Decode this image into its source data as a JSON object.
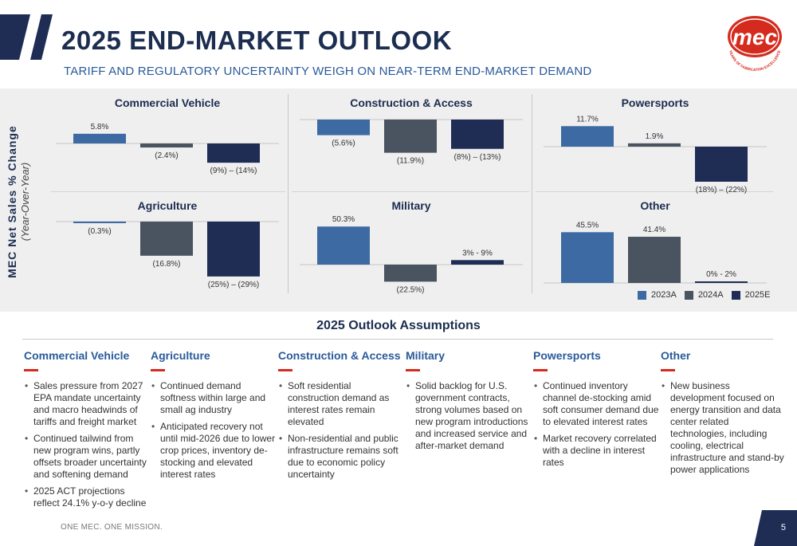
{
  "header": {
    "title": "2025 END-MARKET OUTLOOK",
    "subtitle": "TARIFF AND REGULATORY UNCERTAINTY WEIGH ON NEAR-TERM END-MARKET DEMAND",
    "logo_text": "mec",
    "logo_ring_text": "YEARS OF FABRICATION EXCELLENCE"
  },
  "y_axis_label": {
    "line1": "MEC Net Sales % Change",
    "line2": "(Year-Over-Year)"
  },
  "colors": {
    "2023A": "#3d6aa3",
    "2024A": "#4a5360",
    "2025E": "#1f2d55",
    "accent": "#d52b1e",
    "title": "#1c2d4f",
    "subtitle": "#2a5a9a"
  },
  "legend": [
    "2023A",
    "2024A",
    "2025E"
  ],
  "chart_data": [
    {
      "type": "bar",
      "title": "Commercial Vehicle",
      "categories": [
        "2023A",
        "2024A",
        "2025E"
      ],
      "values": [
        5.8,
        -2.4,
        -11.5
      ],
      "labels": [
        "5.8%",
        "(2.4%)",
        "(9%) – (14%)"
      ]
    },
    {
      "type": "bar",
      "title": "Construction & Access",
      "categories": [
        "2023A",
        "2024A",
        "2025E"
      ],
      "values": [
        -5.6,
        -11.9,
        -10.5
      ],
      "labels": [
        "(5.6%)",
        "(11.9%)",
        "(8%) – (13%)"
      ]
    },
    {
      "type": "bar",
      "title": "Powersports",
      "categories": [
        "2023A",
        "2024A",
        "2025E"
      ],
      "values": [
        11.7,
        1.9,
        -20
      ],
      "labels": [
        "11.7%",
        "1.9%",
        "(18%) – (22%)"
      ]
    },
    {
      "type": "bar",
      "title": "Agriculture",
      "categories": [
        "2023A",
        "2024A",
        "2025E"
      ],
      "values": [
        -0.3,
        -16.8,
        -27
      ],
      "labels": [
        "(0.3%)",
        "(16.8%)",
        "(25%) – (29%)"
      ]
    },
    {
      "type": "bar",
      "title": "Military",
      "categories": [
        "2023A",
        "2024A",
        "2025E"
      ],
      "values": [
        50.3,
        -22.5,
        6
      ],
      "labels": [
        "50.3%",
        "(22.5%)",
        "3% - 9%"
      ]
    },
    {
      "type": "bar",
      "title": "Other",
      "categories": [
        "2023A",
        "2024A",
        "2025E"
      ],
      "values": [
        45.5,
        41.4,
        1
      ],
      "labels": [
        "45.5%",
        "41.4%",
        "0% - 2%"
      ]
    }
  ],
  "assumptions": {
    "title": "2025 Outlook Assumptions",
    "columns": [
      {
        "heading": "Commercial Vehicle",
        "bullets": [
          "Sales pressure from 2027 EPA mandate uncertainty and macro headwinds of tariffs and freight market",
          "Continued tailwind from new program wins, partly offsets broader uncertainty and softening demand",
          "2025 ACT projections reflect 24.1% y-o-y decline"
        ]
      },
      {
        "heading": "Agriculture",
        "bullets": [
          "Continued demand softness within large and small ag industry",
          "Anticipated recovery not until mid-2026 due to lower crop prices, inventory de-stocking and elevated interest rates"
        ]
      },
      {
        "heading": "Construction & Access",
        "bullets": [
          "Soft residential construction demand as interest rates remain elevated",
          "Non-residential and public infrastructure remains soft due to economic policy uncertainty"
        ]
      },
      {
        "heading": "Military",
        "bullets": [
          "Solid backlog for U.S. government contracts, strong volumes based on new program introductions and increased service and after-market demand"
        ]
      },
      {
        "heading": "Powersports",
        "bullets": [
          "Continued inventory channel de-stocking amid soft consumer demand due to elevated interest rates",
          "Market recovery correlated with a decline in interest rates"
        ]
      },
      {
        "heading": "Other",
        "bullets": [
          "New business development focused on energy transition and data center related technologies, including cooling, electrical infrastructure and stand-by power applications"
        ]
      }
    ]
  },
  "footer": {
    "tagline": "ONE MEC. ONE MISSION.",
    "page": "5"
  }
}
